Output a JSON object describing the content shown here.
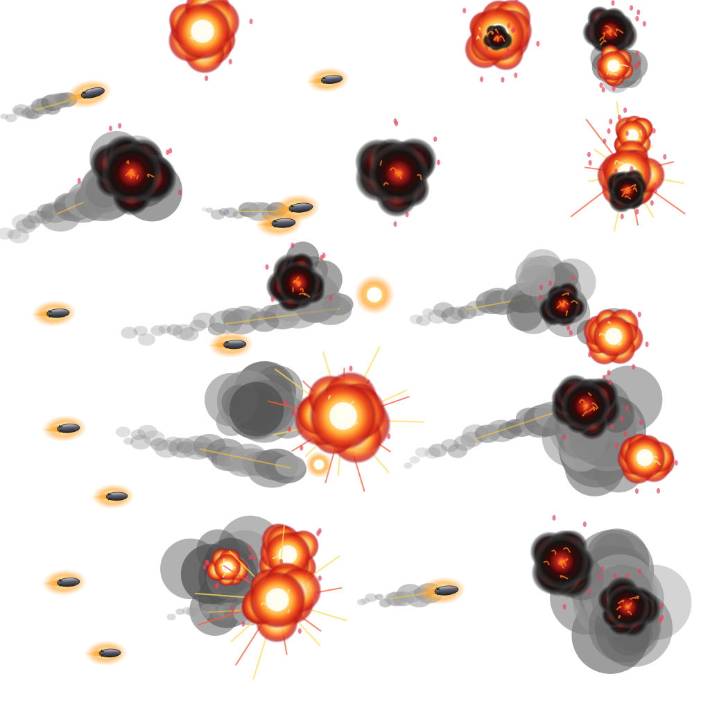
{
  "sheet": {
    "kind": "sprite sheet",
    "background": "#ffffff",
    "rows": 5,
    "sprite_types": [
      "missile",
      "smoke-trail",
      "explosion",
      "debris-sparks"
    ],
    "palette": {
      "fire_core": "#fffbe8",
      "fire_yellow": "#ffd23a",
      "fire_orange": "#ff7a1a",
      "fire_red": "#d8261a",
      "ember_dark": "#3a0606",
      "smoke_dark": "#1c1a1a",
      "smoke_grey": "#8a8a8a",
      "glow": "#ffb347",
      "missile_body": "#4a4c55"
    }
  }
}
